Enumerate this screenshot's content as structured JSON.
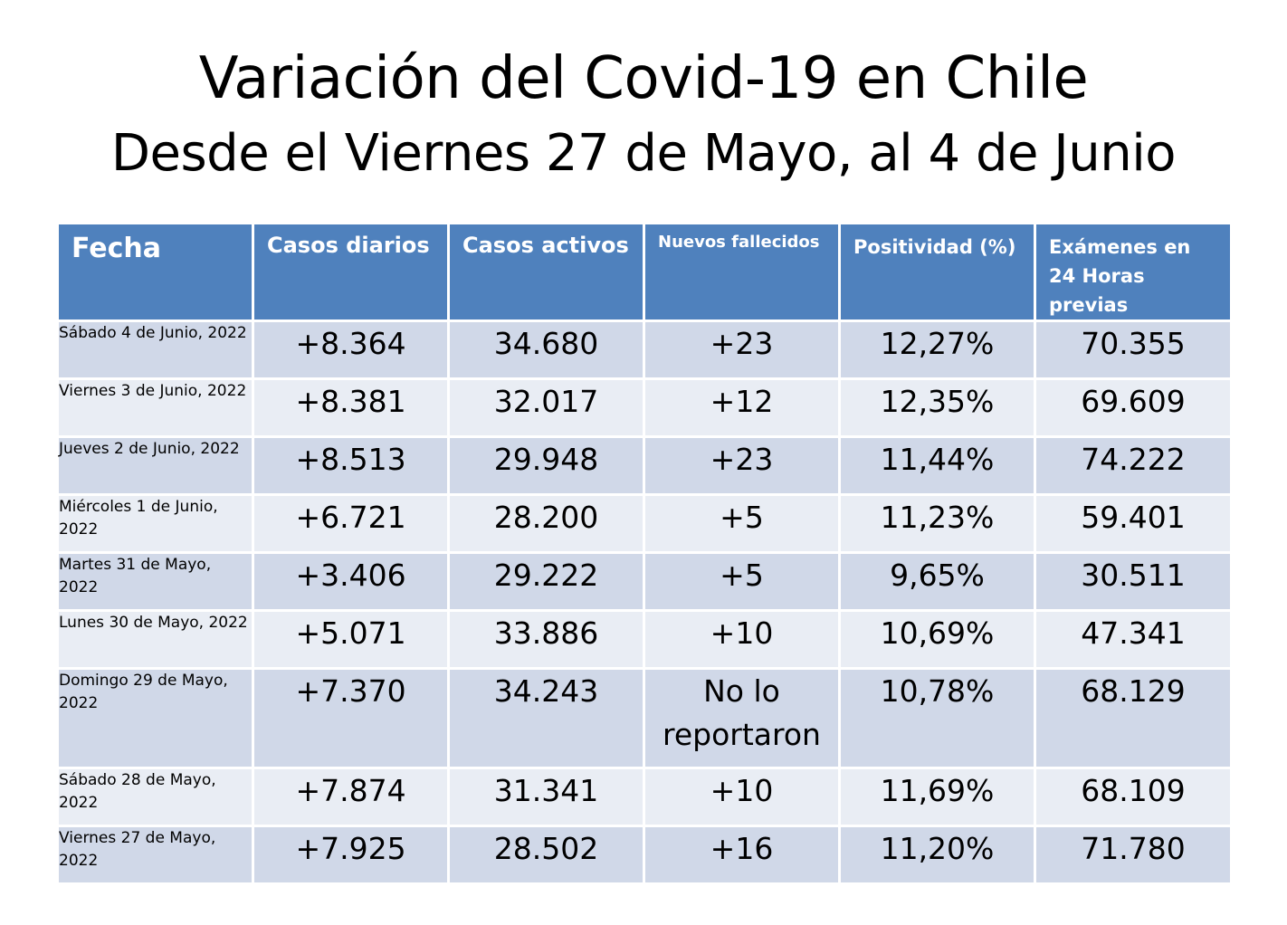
{
  "title": {
    "line1": "Variación del Covid-19 en Chile",
    "line2": "Desde el Viernes 27 de Mayo, al 4 de Junio"
  },
  "table": {
    "headers": [
      "Fecha",
      "Casos diarios",
      "Casos activos",
      "Nuevos fallecidos",
      "Positividad (%)",
      "Exámenes en 24 Horas previas"
    ],
    "rows": [
      [
        "Sábado 4 de Junio, 2022",
        "+8.364",
        "34.680",
        "+23",
        "12,27%",
        "70.355"
      ],
      [
        "Viernes 3 de Junio, 2022",
        "+8.381",
        "32.017",
        "+12",
        "12,35%",
        "69.609"
      ],
      [
        "Jueves 2 de Junio, 2022",
        "+8.513",
        "29.948",
        "+23",
        "11,44%",
        "74.222"
      ],
      [
        "Miércoles 1 de Junio, 2022",
        "+6.721",
        "28.200",
        "+5",
        "11,23%",
        "59.401"
      ],
      [
        "Martes 31 de Mayo, 2022",
        "+3.406",
        "29.222",
        "+5",
        "9,65%",
        "30.511"
      ],
      [
        "Lunes 30 de Mayo, 2022",
        "+5.071",
        "33.886",
        "+10",
        "10,69%",
        "47.341"
      ],
      [
        "Domingo 29 de Mayo, 2022",
        "+7.370",
        "34.243",
        "No lo reportaron",
        "10,78%",
        "68.129"
      ],
      [
        "Sábado 28 de Mayo, 2022",
        "+7.874",
        "31.341",
        "+10",
        "11,69%",
        "68.109"
      ],
      [
        "Viernes 27 de Mayo, 2022",
        "+7.925",
        "28.502",
        "+16",
        "11,20%",
        "71.780"
      ]
    ]
  },
  "colors": {
    "header_bg": "#4f81bd",
    "row_dark": "#d0d8e8",
    "row_light": "#e9edf4"
  }
}
